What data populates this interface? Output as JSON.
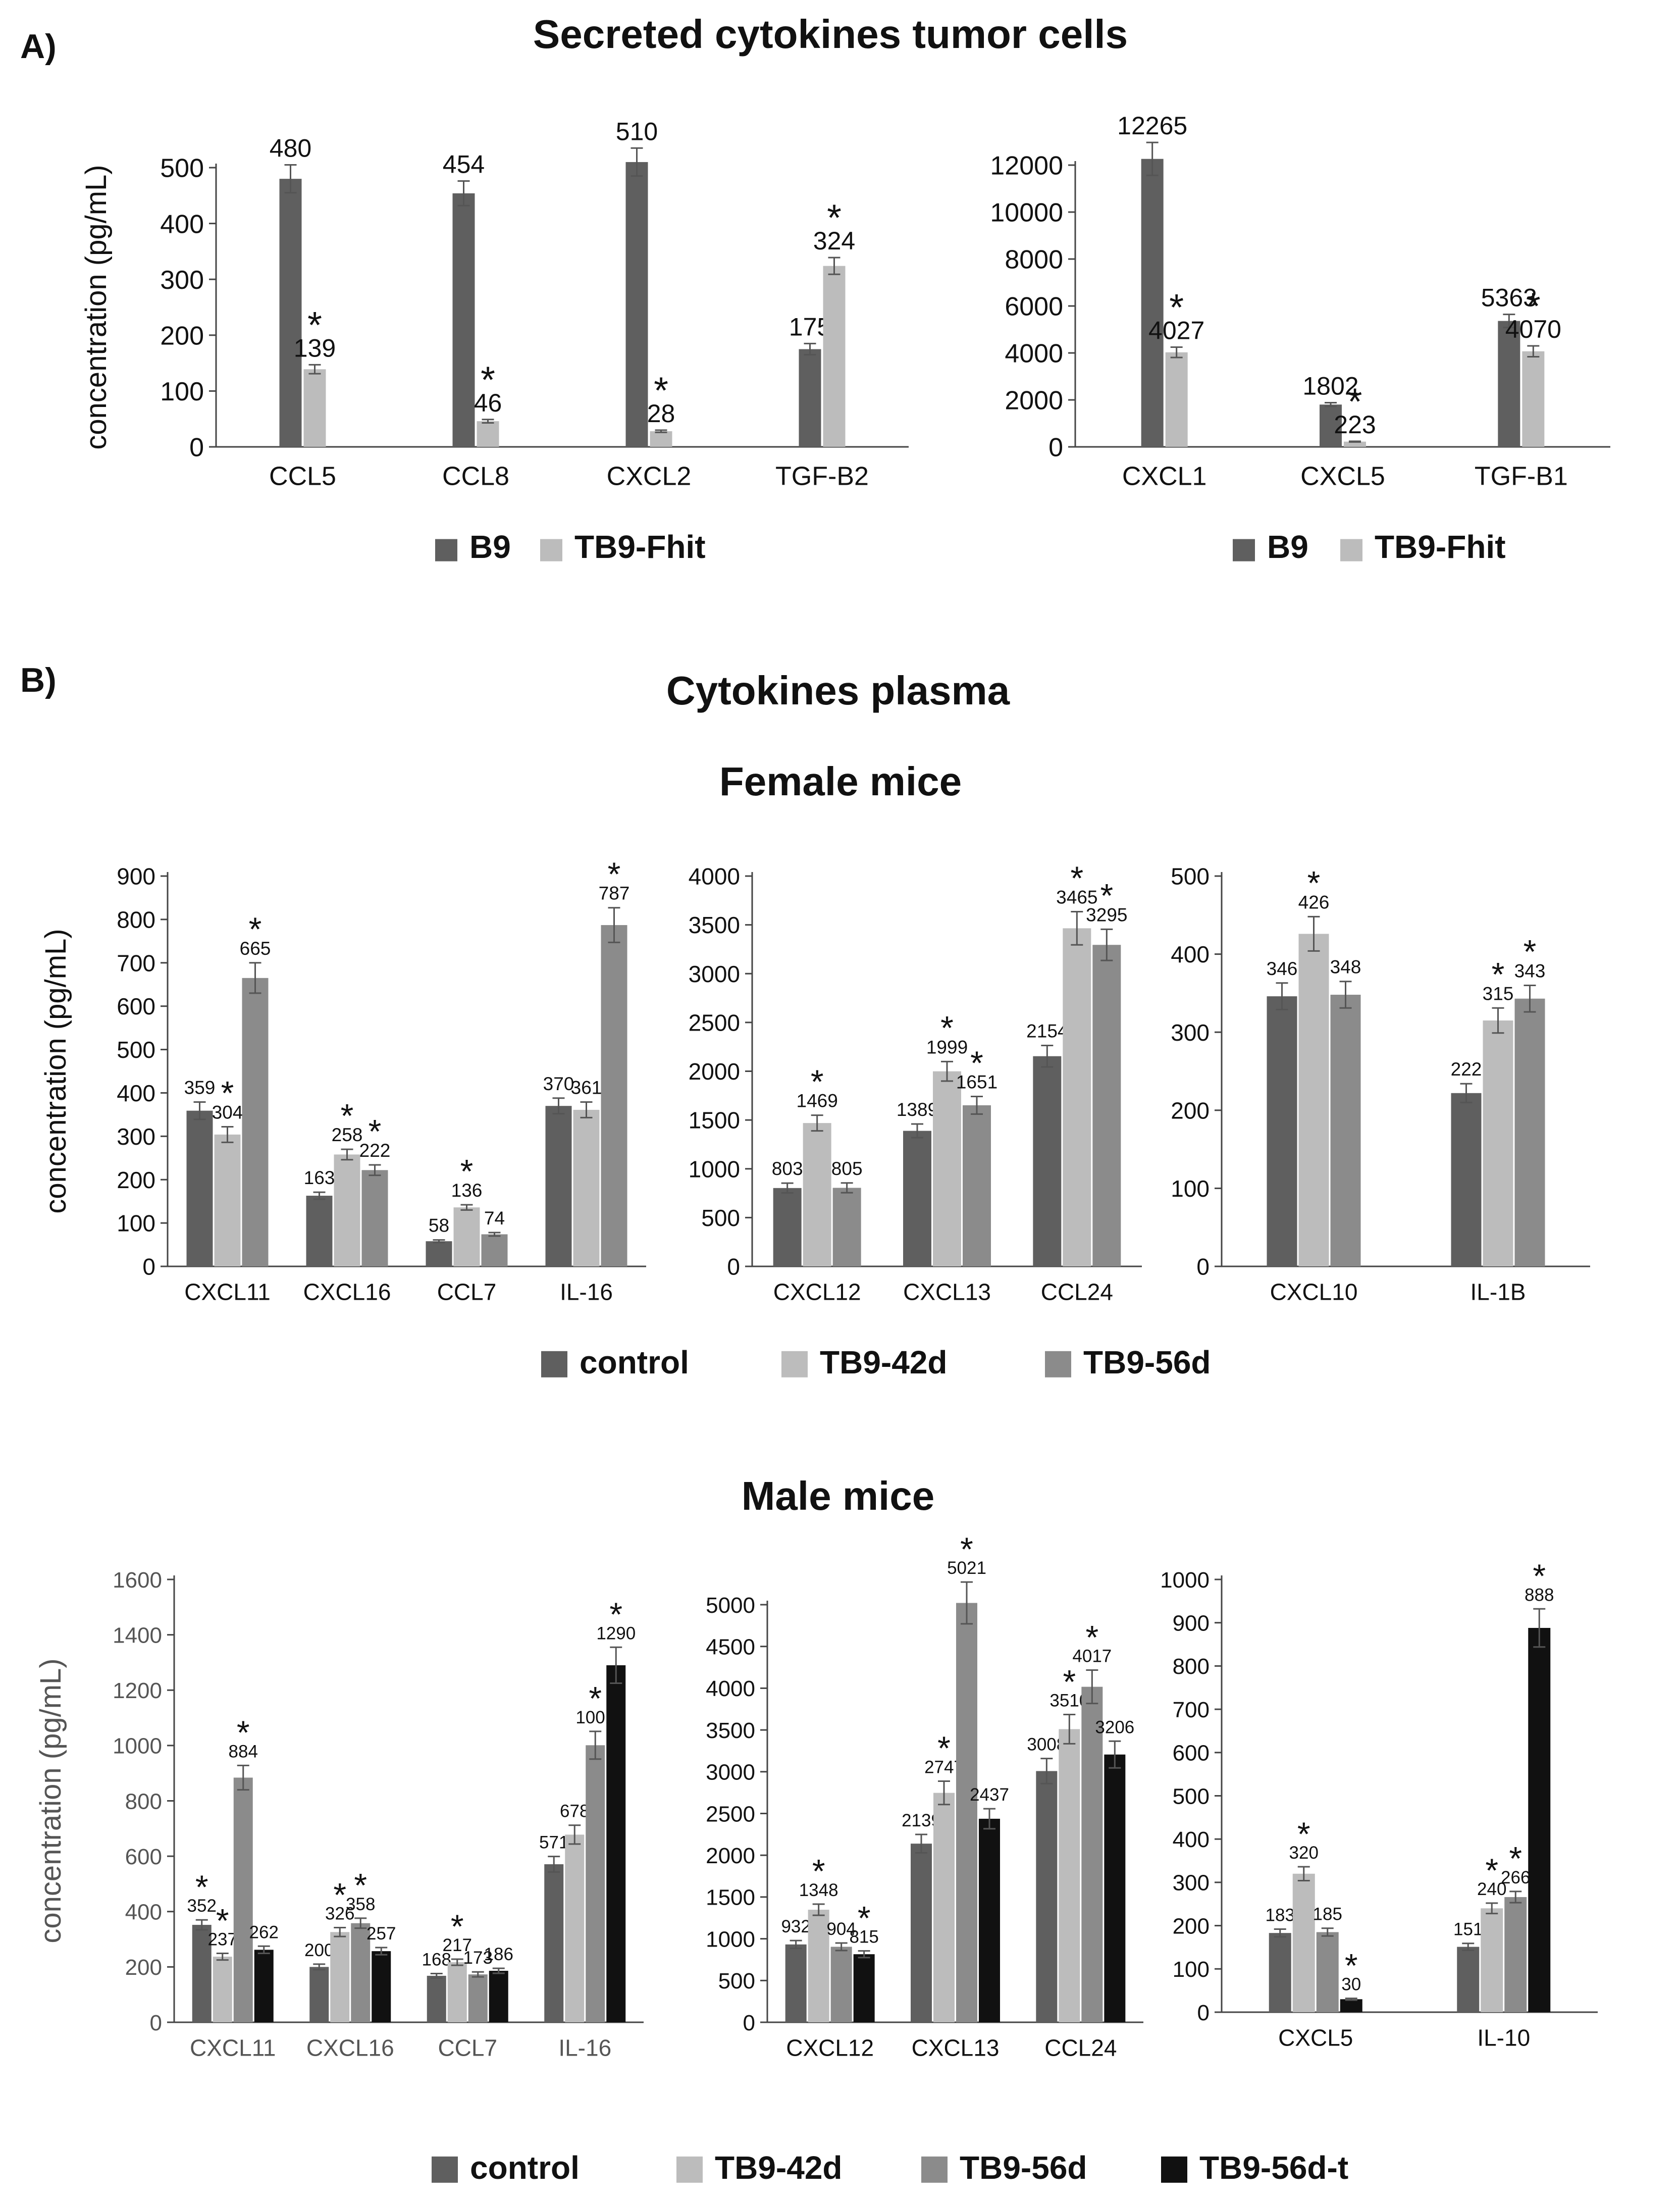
{
  "panel_a": {
    "label": "A)",
    "title": "Secreted cytokines tumor cells"
  },
  "panel_b": {
    "label": "B)",
    "title": "Cytokines plasma",
    "female_title": "Female mice",
    "male_title": "Male mice"
  },
  "colors": {
    "B9": "#5f5f5f",
    "TB9-Fhit": "#bcbcbc",
    "control": "#5f5f5f",
    "TB9-42d": "#bcbcbc",
    "TB9-56d": "#8b8b8b",
    "TB9-56d-t": "#111111",
    "error": "#555555"
  },
  "chart_data": [
    {
      "type": "bar",
      "ylabel": "concentration (pg/mL)",
      "ylim": [
        0,
        500
      ],
      "yticks": [
        "0",
        "100",
        "200",
        "300",
        "400",
        "500"
      ],
      "categories": [
        "CCL5",
        "CCL8",
        "CXCL2",
        "TGF-B2"
      ],
      "series": [
        {
          "name": "B9",
          "values": [
            480,
            454,
            510,
            175
          ],
          "errors": [
            25,
            22,
            25,
            10
          ],
          "labels": [
            "480",
            "454",
            "510",
            "175"
          ],
          "stars": [
            false,
            false,
            false,
            false
          ]
        },
        {
          "name": "TB9-Fhit",
          "values": [
            139,
            46,
            28,
            324
          ],
          "errors": [
            8,
            3,
            2,
            15
          ],
          "labels": [
            "139",
            "46",
            "28",
            "324"
          ],
          "stars": [
            true,
            true,
            true,
            true
          ]
        }
      ],
      "legend": "bottom"
    },
    {
      "type": "bar",
      "ylabel": "",
      "ylim": [
        0,
        12000
      ],
      "yticks": [
        "0",
        "2000",
        "4000",
        "6000",
        "8000",
        "10000",
        "12000"
      ],
      "categories": [
        "CXCL1",
        "CXCL5",
        "TGF-B1"
      ],
      "series": [
        {
          "name": "B9",
          "values": [
            12265,
            1802,
            5363
          ],
          "errors": [
            700,
            80,
            280
          ],
          "labels": [
            "12265",
            "1802",
            "5363"
          ],
          "stars": [
            false,
            false,
            false
          ]
        },
        {
          "name": "TB9-Fhit",
          "values": [
            4027,
            223,
            4070
          ],
          "errors": [
            220,
            15,
            230
          ],
          "labels": [
            "4027",
            "223",
            "4070"
          ],
          "stars": [
            true,
            true,
            true
          ]
        }
      ],
      "legend": "bottom"
    },
    {
      "type": "bar",
      "ylabel": "concentration (pg/mL)",
      "ylim": [
        0,
        900
      ],
      "yticks": [
        "0",
        "100",
        "200",
        "300",
        "400",
        "500",
        "600",
        "700",
        "800",
        "900"
      ],
      "categories": [
        "CXCL11",
        "CXCL16",
        "CCL7",
        "IL-16"
      ],
      "series": [
        {
          "name": "control",
          "values": [
            359,
            163,
            58,
            370
          ],
          "errors": [
            20,
            8,
            3,
            18
          ],
          "labels": [
            "359",
            "163",
            "58",
            "370"
          ],
          "stars": [
            false,
            false,
            false,
            false
          ]
        },
        {
          "name": "TB9-42d",
          "values": [
            304,
            258,
            136,
            361
          ],
          "errors": [
            18,
            12,
            6,
            18
          ],
          "labels": [
            "304",
            "258",
            "136",
            "361"
          ],
          "stars": [
            true,
            true,
            true,
            false
          ]
        },
        {
          "name": "TB9-56d",
          "values": [
            665,
            222,
            74,
            787
          ],
          "errors": [
            35,
            12,
            4,
            40
          ],
          "labels": [
            "665",
            "222",
            "74",
            "787"
          ],
          "stars": [
            true,
            true,
            false,
            true
          ]
        }
      ],
      "legend": "bottom"
    },
    {
      "type": "bar",
      "ylabel": "",
      "ylim": [
        0,
        4000
      ],
      "yticks": [
        "0",
        "500",
        "1000",
        "1500",
        "2000",
        "2500",
        "3000",
        "3500",
        "4000"
      ],
      "categories": [
        "CXCL12",
        "CXCL13",
        "CCL24"
      ],
      "series": [
        {
          "name": "control",
          "values": [
            803,
            1389,
            2154
          ],
          "errors": [
            50,
            70,
            110
          ],
          "labels": [
            "803",
            "1389",
            "2154"
          ],
          "stars": [
            false,
            false,
            false
          ]
        },
        {
          "name": "TB9-42d",
          "values": [
            1469,
            1999,
            3465
          ],
          "errors": [
            80,
            100,
            170
          ],
          "labels": [
            "1469",
            "1999",
            "3465"
          ],
          "stars": [
            true,
            true,
            true
          ]
        },
        {
          "name": "TB9-56d",
          "values": [
            805,
            1651,
            3295
          ],
          "errors": [
            50,
            90,
            160
          ],
          "labels": [
            "805",
            "1651",
            "3295"
          ],
          "stars": [
            false,
            true,
            true
          ]
        }
      ],
      "legend": "bottom"
    },
    {
      "type": "bar",
      "ylabel": "",
      "ylim": [
        0,
        500
      ],
      "yticks": [
        "0",
        "100",
        "200",
        "300",
        "400",
        "500"
      ],
      "categories": [
        "CXCL10",
        "IL-1B"
      ],
      "series": [
        {
          "name": "control",
          "values": [
            346,
            222
          ],
          "errors": [
            17,
            12
          ],
          "labels": [
            "346",
            "222"
          ],
          "stars": [
            false,
            false
          ]
        },
        {
          "name": "TB9-42d",
          "values": [
            426,
            315
          ],
          "errors": [
            22,
            16
          ],
          "labels": [
            "426",
            "315"
          ],
          "stars": [
            true,
            true
          ]
        },
        {
          "name": "TB9-56d",
          "values": [
            348,
            343
          ],
          "errors": [
            17,
            17
          ],
          "labels": [
            "348",
            "343"
          ],
          "stars": [
            false,
            true
          ]
        }
      ],
      "legend": "bottom"
    },
    {
      "type": "bar",
      "ylabel": "concentration (pg/mL)",
      "ylim": [
        0,
        1600
      ],
      "yticks": [
        "0",
        "200",
        "400",
        "600",
        "800",
        "1000",
        "1200",
        "1400",
        "1600"
      ],
      "categories": [
        "CXCL11",
        "CXCL16",
        "CCL7",
        "IL-16"
      ],
      "series": [
        {
          "name": "control",
          "values": [
            352,
            200,
            168,
            571
          ],
          "errors": [
            18,
            10,
            8,
            28
          ],
          "labels": [
            "352",
            "200",
            "168",
            "571"
          ],
          "stars": [
            true,
            false,
            false,
            false
          ]
        },
        {
          "name": "TB9-42d",
          "values": [
            237,
            326,
            217,
            678
          ],
          "errors": [
            12,
            16,
            11,
            34
          ],
          "labels": [
            "237",
            "326",
            "217",
            "678"
          ],
          "stars": [
            true,
            true,
            true,
            false
          ]
        },
        {
          "name": "TB9-56d",
          "values": [
            884,
            358,
            173,
            1001
          ],
          "errors": [
            44,
            18,
            9,
            50
          ],
          "labels": [
            "884",
            "358",
            "173",
            "1001"
          ],
          "stars": [
            true,
            true,
            false,
            true
          ]
        },
        {
          "name": "TB9-56d-t",
          "values": [
            262,
            257,
            186,
            1290
          ],
          "errors": [
            13,
            13,
            9,
            65
          ],
          "labels": [
            "262",
            "257",
            "186",
            "1290"
          ],
          "stars": [
            false,
            false,
            false,
            true
          ]
        }
      ],
      "legend": "bottom"
    },
    {
      "type": "bar",
      "ylabel": "",
      "ylim": [
        0,
        5000
      ],
      "yticks": [
        "0",
        "500",
        "1000",
        "1500",
        "2000",
        "2500",
        "3000",
        "3500",
        "4000",
        "4500",
        "5000"
      ],
      "categories": [
        "CXCL12",
        "CXCL13",
        "CCL24"
      ],
      "series": [
        {
          "name": "control",
          "values": [
            932,
            2139,
            3008
          ],
          "errors": [
            47,
            110,
            150
          ],
          "labels": [
            "932",
            "2139",
            "3008"
          ],
          "stars": [
            false,
            false,
            false
          ]
        },
        {
          "name": "TB9-42d",
          "values": [
            1348,
            2747,
            3510
          ],
          "errors": [
            67,
            140,
            175
          ],
          "labels": [
            "1348",
            "2747",
            "3510"
          ],
          "stars": [
            true,
            true,
            true
          ]
        },
        {
          "name": "TB9-56d",
          "values": [
            904,
            5021,
            4017
          ],
          "errors": [
            45,
            250,
            200
          ],
          "labels": [
            "904",
            "5021",
            "4017"
          ],
          "stars": [
            false,
            true,
            true
          ]
        },
        {
          "name": "TB9-56d-t",
          "values": [
            815,
            2437,
            3206
          ],
          "errors": [
            40,
            120,
            160
          ],
          "labels": [
            "815",
            "2437",
            "3206"
          ],
          "stars": [
            true,
            false,
            false
          ]
        }
      ],
      "legend": "bottom"
    },
    {
      "type": "bar",
      "ylabel": "",
      "ylim": [
        0,
        1000
      ],
      "yticks": [
        "0",
        "100",
        "200",
        "300",
        "400",
        "500",
        "600",
        "700",
        "800",
        "900",
        "1000"
      ],
      "categories": [
        "CXCL5",
        "IL-10"
      ],
      "series": [
        {
          "name": "control",
          "values": [
            183,
            151
          ],
          "errors": [
            9,
            8
          ],
          "labels": [
            "183",
            "151"
          ],
          "stars": [
            false,
            false
          ]
        },
        {
          "name": "TB9-42d",
          "values": [
            320,
            240
          ],
          "errors": [
            16,
            12
          ],
          "labels": [
            "320",
            "240"
          ],
          "stars": [
            true,
            true
          ]
        },
        {
          "name": "TB9-56d",
          "values": [
            185,
            266
          ],
          "errors": [
            9,
            13
          ],
          "labels": [
            "185",
            "266"
          ],
          "stars": [
            false,
            true
          ]
        },
        {
          "name": "TB9-56d-t",
          "values": [
            30,
            888
          ],
          "errors": [
            2,
            44
          ],
          "labels": [
            "30",
            "888"
          ],
          "stars": [
            true,
            true
          ]
        }
      ],
      "legend": "bottom"
    }
  ],
  "legends": {
    "a": [
      "B9",
      "TB9-Fhit"
    ],
    "female": [
      "control",
      "TB9-42d",
      "TB9-56d"
    ],
    "male": [
      "control",
      "TB9-42d",
      "TB9-56d",
      "TB9-56d-t"
    ]
  }
}
